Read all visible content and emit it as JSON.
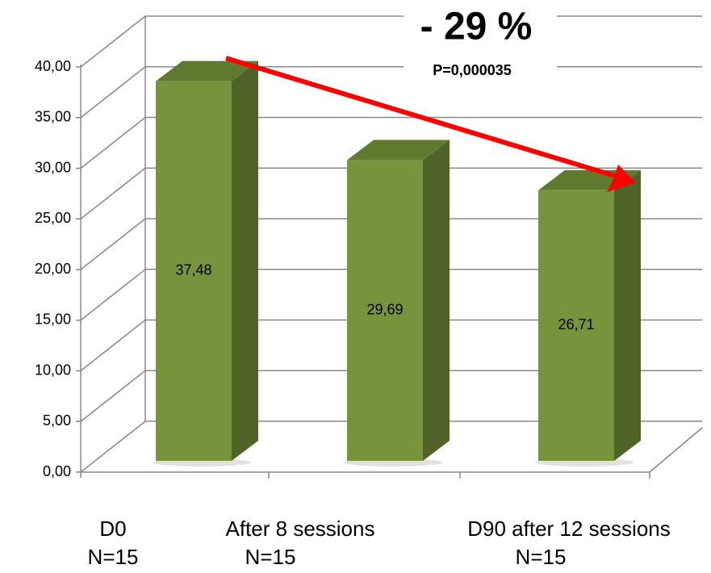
{
  "chart_data": {
    "type": "bar3d",
    "categories": [
      "D0",
      "After 8 sessions",
      "D90 after 12 sessions"
    ],
    "sample_sizes": [
      "N=15",
      "N=15",
      "N=15"
    ],
    "values": [
      37.48,
      29.69,
      26.71
    ],
    "value_labels": [
      "37,48",
      "29,69",
      "26,71"
    ],
    "color": "#77933c",
    "ylim": [
      0,
      40
    ],
    "yticks": [
      {
        "value": 0,
        "label": "0,00"
      },
      {
        "value": 5,
        "label": "5,00"
      },
      {
        "value": 10,
        "label": "10,00"
      },
      {
        "value": 15,
        "label": "15,00"
      },
      {
        "value": 20,
        "label": "20,00"
      },
      {
        "value": 25,
        "label": "25,00"
      },
      {
        "value": 30,
        "label": "30,00"
      },
      {
        "value": 35,
        "label": "35,00"
      },
      {
        "value": 40,
        "label": "40,00"
      }
    ],
    "grid": true,
    "annotations": [
      "- 29 %",
      "P=0,000035"
    ]
  }
}
